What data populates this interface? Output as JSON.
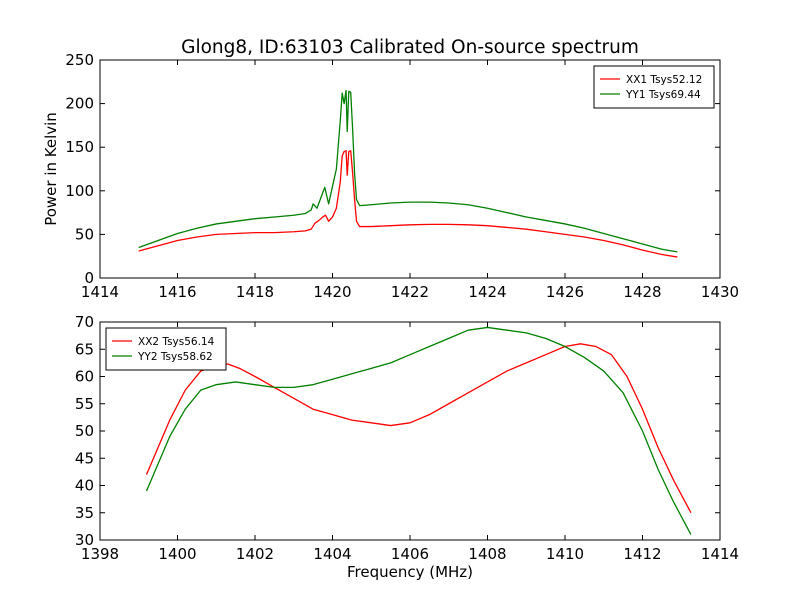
{
  "figure_title": "Glong8, ID:63103 Calibrated On-source spectrum",
  "chart_data": [
    {
      "type": "line",
      "title": "Glong8, ID:63103 Calibrated On-source spectrum",
      "xlabel": "",
      "ylabel": "Power in Kelvin",
      "xlim": [
        1414,
        1430
      ],
      "ylim": [
        0,
        250
      ],
      "xticks": [
        1414,
        1416,
        1418,
        1420,
        1422,
        1424,
        1426,
        1428,
        1430
      ],
      "yticks": [
        0,
        50,
        100,
        150,
        200,
        250
      ],
      "legend_position": "top-right",
      "series": [
        {
          "name": "XX1 Tsys52.12",
          "color": "#ff0000",
          "x": [
            1415.0,
            1415.5,
            1416.0,
            1416.5,
            1417.0,
            1417.5,
            1418.0,
            1418.5,
            1419.0,
            1419.3,
            1419.45,
            1419.55,
            1419.65,
            1419.75,
            1419.82,
            1419.9,
            1420.0,
            1420.1,
            1420.2,
            1420.25,
            1420.3,
            1420.35,
            1420.38,
            1420.42,
            1420.47,
            1420.52,
            1420.57,
            1420.62,
            1420.7,
            1421.0,
            1421.5,
            1422.0,
            1422.5,
            1423.0,
            1423.5,
            1424.0,
            1424.5,
            1425.0,
            1425.5,
            1426.0,
            1426.5,
            1427.0,
            1427.5,
            1428.0,
            1428.5,
            1428.9
          ],
          "y": [
            31,
            37,
            43,
            47,
            50,
            51,
            52,
            52,
            53,
            54,
            56,
            63,
            66,
            70,
            72,
            65,
            70,
            80,
            110,
            140,
            145,
            146,
            118,
            145,
            146,
            120,
            90,
            65,
            59,
            59,
            60,
            61,
            61.5,
            61.5,
            61,
            60,
            58,
            56,
            53,
            50,
            47,
            43,
            38,
            32,
            27,
            24
          ]
        },
        {
          "name": "YY1 Tsys69.44",
          "color": "#008000",
          "x": [
            1415.0,
            1415.5,
            1416.0,
            1416.5,
            1417.0,
            1417.5,
            1418.0,
            1418.5,
            1419.0,
            1419.3,
            1419.45,
            1419.5,
            1419.6,
            1419.7,
            1419.8,
            1419.9,
            1420.0,
            1420.1,
            1420.2,
            1420.25,
            1420.3,
            1420.35,
            1420.38,
            1420.42,
            1420.47,
            1420.52,
            1420.57,
            1420.62,
            1420.7,
            1421.0,
            1421.5,
            1422.0,
            1422.5,
            1423.0,
            1423.5,
            1424.0,
            1424.5,
            1425.0,
            1425.5,
            1426.0,
            1426.5,
            1427.0,
            1427.5,
            1428.0,
            1428.5,
            1428.9
          ],
          "y": [
            35,
            43,
            51,
            57,
            62,
            65,
            68,
            70,
            72,
            74,
            78,
            85,
            80,
            92,
            104,
            85,
            105,
            125,
            180,
            212,
            200,
            215,
            168,
            214,
            213,
            170,
            120,
            90,
            83,
            84,
            86,
            87,
            87,
            86,
            84,
            80,
            75,
            70,
            66,
            62,
            57,
            51,
            45,
            39,
            33,
            30
          ]
        }
      ]
    },
    {
      "type": "line",
      "title": "",
      "xlabel": "Frequency (MHz)",
      "ylabel": "",
      "xlim": [
        1398,
        1414
      ],
      "ylim": [
        30,
        70
      ],
      "xticks": [
        1398,
        1400,
        1402,
        1404,
        1406,
        1408,
        1410,
        1412,
        1414
      ],
      "yticks": [
        30,
        35,
        40,
        45,
        50,
        55,
        60,
        65,
        70
      ],
      "legend_position": "top-left",
      "series": [
        {
          "name": "XX2 Tsys56.14",
          "color": "#ff0000",
          "x": [
            1399.2,
            1399.5,
            1399.8,
            1400.2,
            1400.6,
            1401.0,
            1401.3,
            1401.6,
            1402.0,
            1402.5,
            1403.0,
            1403.5,
            1404.0,
            1404.5,
            1405.0,
            1405.5,
            1406.0,
            1406.5,
            1407.0,
            1407.5,
            1408.0,
            1408.5,
            1409.0,
            1409.5,
            1410.0,
            1410.4,
            1410.8,
            1411.2,
            1411.6,
            1412.0,
            1412.4,
            1412.8,
            1413.25
          ],
          "y": [
            42,
            47,
            52,
            57.5,
            61,
            62,
            62.3,
            61.5,
            60,
            58,
            56,
            54,
            53,
            52,
            51.5,
            51,
            51.5,
            53,
            55,
            57,
            59,
            61,
            62.5,
            64,
            65.5,
            66,
            65.5,
            64,
            60,
            54,
            47,
            41,
            35
          ]
        },
        {
          "name": "YY2 Tsys58.62",
          "color": "#008000",
          "x": [
            1399.2,
            1399.5,
            1399.8,
            1400.2,
            1400.6,
            1401.0,
            1401.5,
            1402.0,
            1402.5,
            1403.0,
            1403.5,
            1404.0,
            1404.5,
            1405.0,
            1405.5,
            1406.0,
            1406.5,
            1407.0,
            1407.5,
            1408.0,
            1408.5,
            1409.0,
            1409.5,
            1410.0,
            1410.5,
            1411.0,
            1411.5,
            1412.0,
            1412.4,
            1412.8,
            1413.25
          ],
          "y": [
            39,
            44,
            49,
            54,
            57.5,
            58.5,
            59,
            58.5,
            58,
            58,
            58.5,
            59.5,
            60.5,
            61.5,
            62.5,
            64,
            65.5,
            67,
            68.5,
            69,
            68.5,
            68,
            67,
            65.5,
            63.5,
            61,
            57,
            50,
            43,
            37,
            31
          ]
        }
      ]
    }
  ]
}
